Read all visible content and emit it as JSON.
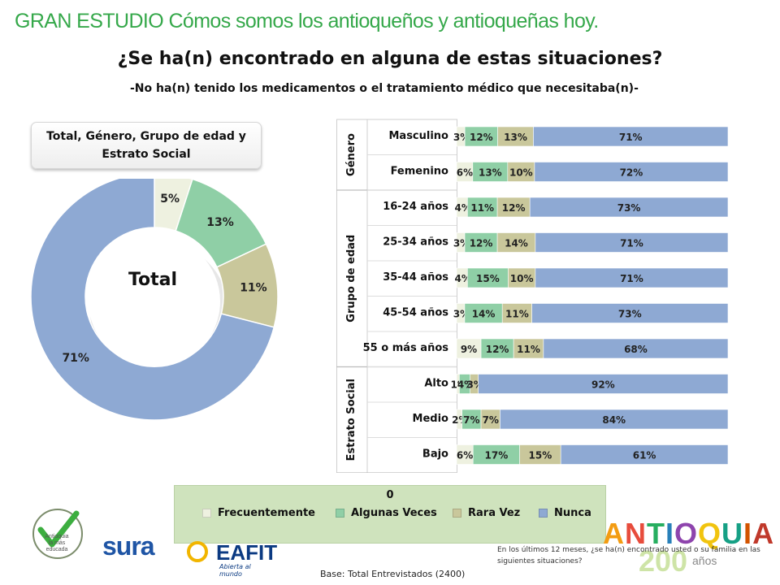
{
  "banner": "GRAN ESTUDIO Cómos somos los antioqueños y antioqueñas hoy.",
  "title": "¿Se ha(n) encontrado en alguna de estas situaciones?",
  "subtitle": "-No ha(n) tenido los medicamentos o el tratamiento médico que necesitaba(n)-",
  "segment_box": "Total, Género, Grupo de edad y Estrato Social",
  "colors": {
    "frecuentemente": "#eef1e0",
    "algunas_veces": "#8fcfa6",
    "rara_vez": "#c9c79b",
    "nunca": "#8ea9d3"
  },
  "chart_data": [
    {
      "type": "pie",
      "center_label": "Total",
      "categories": [
        "Frecuentemente",
        "Algunas Veces",
        "Rara Vez",
        "Nunca"
      ],
      "values": [
        5,
        13,
        11,
        71
      ],
      "value_labels": [
        "5%",
        "13%",
        "11%",
        "71%"
      ]
    },
    {
      "type": "bar",
      "stacked": true,
      "orientation": "horizontal",
      "groups": [
        {
          "name": "Género",
          "categories": [
            "Masculino",
            "Femenino"
          ]
        },
        {
          "name": "Grupo de edad",
          "categories": [
            "16-24 años",
            "25-34  años",
            "35-44 años",
            "45-54 años",
            "55 o más años"
          ]
        },
        {
          "name": "Estrato Social",
          "categories": [
            "Alto",
            "Medio",
            "Bajo"
          ]
        }
      ],
      "categories": [
        "Masculino",
        "Femenino",
        "16-24 años",
        "25-34  años",
        "35-44 años",
        "45-54 años",
        "55 o más años",
        "Alto",
        "Medio",
        "Bajo"
      ],
      "series": [
        {
          "name": "Frecuentemente",
          "values": [
            3,
            6,
            4,
            3,
            4,
            3,
            9,
            1,
            2,
            6
          ]
        },
        {
          "name": "Algunas Veces",
          "values": [
            12,
            13,
            11,
            12,
            15,
            14,
            12,
            4,
            7,
            17
          ]
        },
        {
          "name": "Rara Vez",
          "values": [
            13,
            10,
            12,
            14,
            10,
            11,
            11,
            3,
            7,
            15
          ]
        },
        {
          "name": "Nunca",
          "values": [
            71,
            72,
            73,
            71,
            71,
            73,
            68,
            92,
            84,
            61
          ]
        }
      ]
    }
  ],
  "legend": {
    "title": "0",
    "items": [
      "Frecuentemente",
      "Algunas Veces",
      "Rara Vez",
      "Nunca"
    ]
  },
  "logos": {
    "check": [
      "Antioquia",
      "la más",
      "educada"
    ],
    "sura": "sura",
    "eafit": "EAFIT",
    "eafit_tag": "Abierta al mundo",
    "antioquia": "ANTIOQUIA",
    "antioquia_200": "200",
    "antioquia_anos": "años"
  },
  "footnote": "En los últimos 12 meses, ¿se ha(n) encontrado usted o su familia en las siguientes situaciones?",
  "base": "Base: Total Entrevistados  (2400)"
}
